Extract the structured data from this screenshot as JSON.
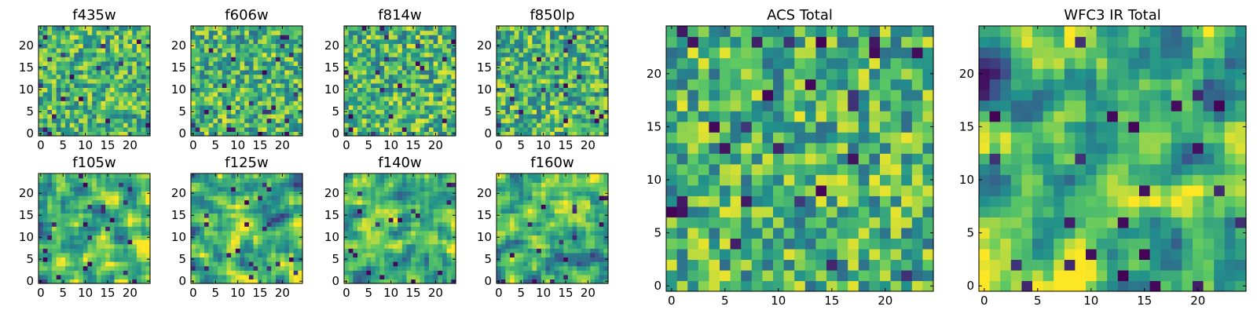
{
  "figure": {
    "background": "#ffffff"
  },
  "colormap": {
    "name": "viridis",
    "stops": [
      "#440154",
      "#3b528b",
      "#21918c",
      "#5ec962",
      "#fde725"
    ]
  },
  "chart_data": [
    {
      "id": "f435w",
      "type": "heatmap",
      "title": "f435w",
      "grid_size": [
        25,
        25
      ],
      "x_ticks": [
        0,
        5,
        10,
        15,
        20
      ],
      "y_ticks": [
        0,
        5,
        10,
        15,
        20
      ],
      "xlim": [
        -0.5,
        24.5
      ],
      "ylim": [
        -0.5,
        24.5
      ],
      "value_range": [
        0,
        1
      ],
      "values": "random_noise",
      "seed": 435
    },
    {
      "id": "f606w",
      "type": "heatmap",
      "title": "f606w",
      "grid_size": [
        25,
        25
      ],
      "x_ticks": [
        0,
        5,
        10,
        15,
        20
      ],
      "y_ticks": [
        0,
        5,
        10,
        15,
        20
      ],
      "xlim": [
        -0.5,
        24.5
      ],
      "ylim": [
        -0.5,
        24.5
      ],
      "value_range": [
        0,
        1
      ],
      "values": "random_noise",
      "seed": 606
    },
    {
      "id": "f814w",
      "type": "heatmap",
      "title": "f814w",
      "grid_size": [
        25,
        25
      ],
      "x_ticks": [
        0,
        5,
        10,
        15,
        20
      ],
      "y_ticks": [
        0,
        5,
        10,
        15,
        20
      ],
      "xlim": [
        -0.5,
        24.5
      ],
      "ylim": [
        -0.5,
        24.5
      ],
      "value_range": [
        0,
        1
      ],
      "values": "random_noise",
      "seed": 814
    },
    {
      "id": "f850lp",
      "type": "heatmap",
      "title": "f850lp",
      "grid_size": [
        25,
        25
      ],
      "x_ticks": [
        0,
        5,
        10,
        15,
        20
      ],
      "y_ticks": [
        0,
        5,
        10,
        15,
        20
      ],
      "xlim": [
        -0.5,
        24.5
      ],
      "ylim": [
        -0.5,
        24.5
      ],
      "value_range": [
        0,
        1
      ],
      "values": "random_noise",
      "seed": 850
    },
    {
      "id": "f105w",
      "type": "heatmap",
      "title": "f105w",
      "grid_size": [
        25,
        25
      ],
      "x_ticks": [
        0,
        5,
        10,
        15,
        20
      ],
      "y_ticks": [
        0,
        5,
        10,
        15,
        20
      ],
      "xlim": [
        -0.5,
        24.5
      ],
      "ylim": [
        -0.5,
        24.5
      ],
      "value_range": [
        0,
        1
      ],
      "values": "smooth_noise",
      "seed": 105
    },
    {
      "id": "f125w",
      "type": "heatmap",
      "title": "f125w",
      "grid_size": [
        25,
        25
      ],
      "x_ticks": [
        0,
        5,
        10,
        15,
        20
      ],
      "y_ticks": [
        0,
        5,
        10,
        15,
        20
      ],
      "xlim": [
        -0.5,
        24.5
      ],
      "ylim": [
        -0.5,
        24.5
      ],
      "value_range": [
        0,
        1
      ],
      "values": "smooth_noise",
      "seed": 125
    },
    {
      "id": "f140w",
      "type": "heatmap",
      "title": "f140w",
      "grid_size": [
        25,
        25
      ],
      "x_ticks": [
        0,
        5,
        10,
        15,
        20
      ],
      "y_ticks": [
        0,
        5,
        10,
        15,
        20
      ],
      "xlim": [
        -0.5,
        24.5
      ],
      "ylim": [
        -0.5,
        24.5
      ],
      "value_range": [
        0,
        1
      ],
      "values": "smooth_noise",
      "seed": 140
    },
    {
      "id": "f160w",
      "type": "heatmap",
      "title": "f160w",
      "grid_size": [
        25,
        25
      ],
      "x_ticks": [
        0,
        5,
        10,
        15,
        20
      ],
      "y_ticks": [
        0,
        5,
        10,
        15,
        20
      ],
      "xlim": [
        -0.5,
        24.5
      ],
      "ylim": [
        -0.5,
        24.5
      ],
      "value_range": [
        0,
        1
      ],
      "values": "smooth_noise",
      "seed": 160
    },
    {
      "id": "acs-total",
      "type": "heatmap",
      "title": "ACS Total",
      "grid_size": [
        25,
        25
      ],
      "x_ticks": [
        0,
        5,
        10,
        15,
        20
      ],
      "y_ticks": [
        0,
        5,
        10,
        15,
        20
      ],
      "xlim": [
        -0.5,
        24.5
      ],
      "ylim": [
        -0.5,
        24.5
      ],
      "value_range": [
        0,
        1
      ],
      "values": "random_noise",
      "seed": 1001
    },
    {
      "id": "wfc3-ir-total",
      "type": "heatmap",
      "title": "WFC3 IR Total",
      "grid_size": [
        25,
        25
      ],
      "x_ticks": [
        0,
        5,
        10,
        15,
        20
      ],
      "y_ticks": [
        0,
        5,
        10,
        15,
        20
      ],
      "xlim": [
        -0.5,
        24.5
      ],
      "ylim": [
        -0.5,
        24.5
      ],
      "value_range": [
        0,
        1
      ],
      "values": "smooth_noise",
      "seed": 2002
    }
  ]
}
